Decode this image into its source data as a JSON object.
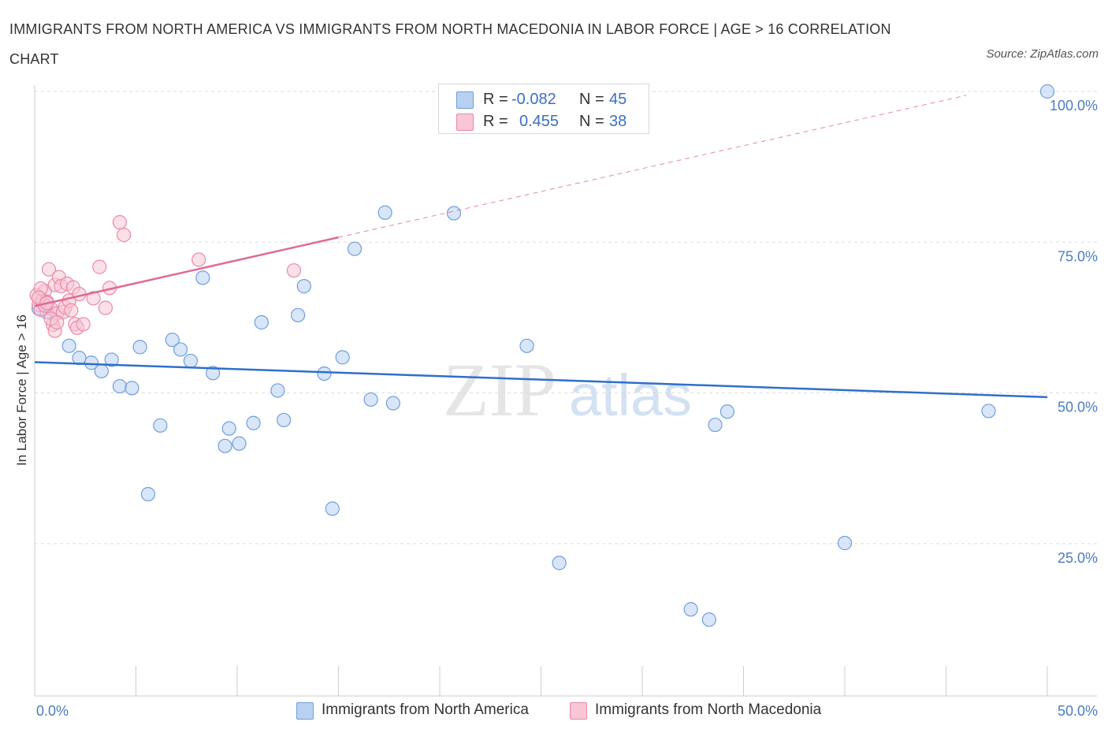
{
  "title": "IMMIGRANTS FROM NORTH AMERICA VS IMMIGRANTS FROM NORTH MACEDONIA IN LABOR FORCE | AGE > 16 CORRELATION CHART",
  "source": "Source: ZipAtlas.com",
  "watermark": {
    "zip": "ZIP",
    "atlas": "atlas"
  },
  "legend": {
    "r_label": "R =",
    "n_label": "N =",
    "rows": [
      {
        "r": "-0.082",
        "n": "45",
        "color": "#a9c8f0"
      },
      {
        "r": "0.455",
        "n": "38",
        "color": "#f6bfd0"
      }
    ]
  },
  "colors": {
    "blue_fill": "#b8d1f3",
    "blue_stroke": "#6f9fdc",
    "blue_line": "#2f6fcb",
    "pink_fill": "#f8c6d5",
    "pink_stroke": "#e98aa8",
    "pink_line": "#e06a92",
    "tick_text": "#4a7cc7"
  },
  "chart_data": {
    "type": "scatter",
    "title": "IMMIGRANTS FROM NORTH AMERICA VS IMMIGRANTS FROM NORTH MACEDONIA IN LABOR FORCE | AGE > 16 CORRELATION CHART",
    "xlabel": "",
    "ylabel": "In Labor Force | Age > 16",
    "xlim": [
      0,
      50
    ],
    "ylim": [
      0,
      100
    ],
    "x_tick_labels": [
      "0.0%",
      "50.0%"
    ],
    "y_ticks": [
      25,
      50,
      75,
      100
    ],
    "y_tick_labels": [
      "25.0%",
      "50.0%",
      "75.0%",
      "100.0%"
    ],
    "grid": true,
    "legend_position": "bottom",
    "series": [
      {
        "name": "Immigrants from North America",
        "color": "#6f9fdc",
        "r": -0.082,
        "n": 45,
        "trend": {
          "x": [
            0,
            50
          ],
          "y": [
            55.1,
            49.3
          ],
          "dashed_to": 50
        },
        "points": [
          [
            0.4,
            64.8
          ],
          [
            1.7,
            57.8
          ],
          [
            2.2,
            55.8
          ],
          [
            2.8,
            55.0
          ],
          [
            3.3,
            53.6
          ],
          [
            3.8,
            55.5
          ],
          [
            4.2,
            51.1
          ],
          [
            4.8,
            50.8
          ],
          [
            5.2,
            57.6
          ],
          [
            5.6,
            33.2
          ],
          [
            6.2,
            44.6
          ],
          [
            6.8,
            58.8
          ],
          [
            7.2,
            57.2
          ],
          [
            7.7,
            55.3
          ],
          [
            8.3,
            69.1
          ],
          [
            8.8,
            53.3
          ],
          [
            9.6,
            44.1
          ],
          [
            9.4,
            41.2
          ],
          [
            10.1,
            41.6
          ],
          [
            10.8,
            45.0
          ],
          [
            11.2,
            61.7
          ],
          [
            12.0,
            50.4
          ],
          [
            12.3,
            45.5
          ],
          [
            13.0,
            62.9
          ],
          [
            13.3,
            67.7
          ],
          [
            14.3,
            53.2
          ],
          [
            14.7,
            30.8
          ],
          [
            15.2,
            55.9
          ],
          [
            15.8,
            73.9
          ],
          [
            16.6,
            48.9
          ],
          [
            17.3,
            79.9
          ],
          [
            17.7,
            48.3
          ],
          [
            20.7,
            79.8
          ],
          [
            24.3,
            57.8
          ],
          [
            25.9,
            21.8
          ],
          [
            28.4,
            100.1
          ],
          [
            32.4,
            14.1
          ],
          [
            33.3,
            12.4
          ],
          [
            33.6,
            44.7
          ],
          [
            34.2,
            46.9
          ],
          [
            40.0,
            25.1
          ],
          [
            47.1,
            47.0
          ],
          [
            50.0,
            100.0
          ],
          [
            0.2,
            64.0
          ],
          [
            0.6,
            63.4
          ]
        ]
      },
      {
        "name": "Immigrants from North Macedonia",
        "color": "#e98aa8",
        "r": 0.455,
        "n": 38,
        "trend": {
          "x": [
            0,
            15
          ],
          "y": [
            64.4,
            75.8
          ],
          "dashed_to": 46
        },
        "points": [
          [
            0.1,
            66.2
          ],
          [
            0.2,
            64.6
          ],
          [
            0.3,
            63.8
          ],
          [
            0.4,
            65.4
          ],
          [
            0.5,
            66.9
          ],
          [
            0.6,
            65.1
          ],
          [
            0.7,
            70.5
          ],
          [
            0.8,
            64.0
          ],
          [
            0.9,
            61.3
          ],
          [
            1.0,
            60.3
          ],
          [
            1.0,
            67.9
          ],
          [
            1.1,
            63.2
          ],
          [
            1.2,
            69.2
          ],
          [
            1.3,
            67.7
          ],
          [
            1.4,
            63.4
          ],
          [
            1.5,
            64.2
          ],
          [
            1.6,
            68.1
          ],
          [
            1.7,
            65.3
          ],
          [
            1.8,
            63.7
          ],
          [
            1.9,
            67.5
          ],
          [
            2.0,
            61.4
          ],
          [
            2.1,
            60.8
          ],
          [
            2.2,
            66.4
          ],
          [
            2.4,
            61.4
          ],
          [
            2.9,
            65.7
          ],
          [
            3.2,
            70.9
          ],
          [
            3.5,
            64.1
          ],
          [
            3.7,
            67.4
          ],
          [
            4.2,
            78.3
          ],
          [
            4.4,
            76.2
          ],
          [
            8.1,
            72.1
          ],
          [
            12.8,
            70.3
          ],
          [
            0.3,
            67.3
          ],
          [
            0.5,
            64.5
          ],
          [
            0.8,
            62.3
          ],
          [
            1.1,
            61.7
          ],
          [
            0.2,
            65.8
          ],
          [
            0.6,
            64.9
          ]
        ]
      }
    ]
  }
}
